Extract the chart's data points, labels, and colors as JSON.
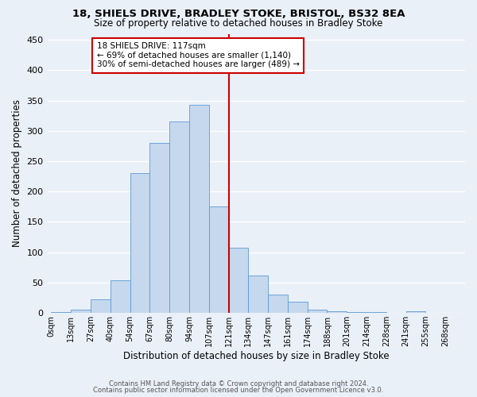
{
  "title1": "18, SHIELS DRIVE, BRADLEY STOKE, BRISTOL, BS32 8EA",
  "title2": "Size of property relative to detached houses in Bradley Stoke",
  "xlabel": "Distribution of detached houses by size in Bradley Stoke",
  "ylabel": "Number of detached properties",
  "bar_labels": [
    "0sqm",
    "13sqm",
    "27sqm",
    "40sqm",
    "54sqm",
    "67sqm",
    "80sqm",
    "94sqm",
    "107sqm",
    "121sqm",
    "134sqm",
    "147sqm",
    "161sqm",
    "174sqm",
    "188sqm",
    "201sqm",
    "214sqm",
    "228sqm",
    "241sqm",
    "255sqm",
    "268sqm"
  ],
  "bar_heights": [
    2,
    6,
    22,
    54,
    230,
    280,
    315,
    343,
    175,
    108,
    62,
    30,
    19,
    6,
    3,
    2,
    2,
    0,
    3,
    0,
    0
  ],
  "bar_color": "#c5d8ed",
  "bar_edge_color": "#5b9bd5",
  "bg_color": "#eaf0f8",
  "grid_color": "#ffffff",
  "marker_label": "18 SHIELS DRIVE: 117sqm",
  "annotation_line1": "← 69% of detached houses are smaller (1,140)",
  "annotation_line2": "30% of semi-detached houses are larger (489) →",
  "annotation_box_color": "#ffffff",
  "annotation_box_edge": "#cc0000",
  "vline_color": "#cc0000",
  "ylim": [
    0,
    460
  ],
  "yticks": [
    0,
    50,
    100,
    150,
    200,
    250,
    300,
    350,
    400,
    450
  ],
  "footnote1": "Contains HM Land Registry data © Crown copyright and database right 2024.",
  "footnote2": "Contains public sector information licensed under the Open Government Licence v3.0."
}
